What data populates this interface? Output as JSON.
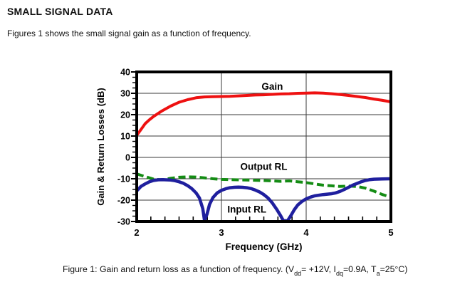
{
  "page": {
    "title": "SMALL SIGNAL DATA",
    "intro": "Figures 1 shows the small signal gain as a function of frequency.",
    "caption": {
      "pre": "Figure 1: Gain and return loss as a function of frequency. (V",
      "sub1": "dd",
      "seg2": "= +12V, I",
      "sub2": "dq",
      "seg3": "=0.9A, T",
      "sub3": "a",
      "seg4": "=25°C)"
    }
  },
  "chart_data": {
    "type": "line",
    "title": "",
    "xlabel": "Frequency (GHz)",
    "ylabel": "Gain & Return Losses (dB)",
    "xlim": [
      2,
      5
    ],
    "ylim": [
      -30,
      40
    ],
    "x_major_ticks": [
      "2",
      "3",
      "4",
      "5"
    ],
    "x_major_values": [
      2,
      3,
      4,
      5
    ],
    "y_major_ticks": [
      "40",
      "30",
      "20",
      "10",
      "0",
      "-10",
      "-20",
      "-30"
    ],
    "y_major_values": [
      40,
      30,
      20,
      10,
      0,
      -10,
      -20,
      -30
    ],
    "x_minor_divisions": 6,
    "y_minor_step": 2.5,
    "grid_vertical_at": [
      3,
      4
    ],
    "grid_horizontal_at": [
      30,
      20,
      10,
      0,
      -10,
      -20
    ],
    "grid_color": "#3a3a3a",
    "border_color": "#000000",
    "legend_position": "inline-labels",
    "series": [
      {
        "name": "Gain",
        "color": "#ee1111",
        "style": "solid",
        "width": 4,
        "points": [
          [
            2.0,
            10.3
          ],
          [
            2.05,
            13
          ],
          [
            2.1,
            15.8
          ],
          [
            2.15,
            17.6
          ],
          [
            2.2,
            19.2
          ],
          [
            2.3,
            21.8
          ],
          [
            2.4,
            24
          ],
          [
            2.5,
            25.8
          ],
          [
            2.6,
            27
          ],
          [
            2.7,
            27.9
          ],
          [
            2.8,
            28.3
          ],
          [
            2.9,
            28.4
          ],
          [
            3.0,
            28.5
          ],
          [
            3.1,
            28.6
          ],
          [
            3.2,
            28.8
          ],
          [
            3.3,
            29.0
          ],
          [
            3.4,
            29.2
          ],
          [
            3.5,
            29.3
          ],
          [
            3.6,
            29.5
          ],
          [
            3.7,
            29.7
          ],
          [
            3.8,
            29.8
          ],
          [
            3.9,
            30.0
          ],
          [
            4.0,
            30.1
          ],
          [
            4.1,
            30.2
          ],
          [
            4.2,
            30.1
          ],
          [
            4.3,
            29.8
          ],
          [
            4.4,
            29.4
          ],
          [
            4.5,
            29.0
          ],
          [
            4.6,
            28.5
          ],
          [
            4.7,
            28.0
          ],
          [
            4.8,
            27.3
          ],
          [
            4.9,
            26.7
          ],
          [
            5.0,
            26.0
          ]
        ]
      },
      {
        "name": "Output RL",
        "color": "#148c14",
        "style": "dashed",
        "width": 4,
        "points": [
          [
            2.0,
            -7.7
          ],
          [
            2.1,
            -9.0
          ],
          [
            2.2,
            -10.2
          ],
          [
            2.3,
            -10.5
          ],
          [
            2.4,
            -9.8
          ],
          [
            2.5,
            -9.3
          ],
          [
            2.6,
            -9.1
          ],
          [
            2.7,
            -9.2
          ],
          [
            2.8,
            -9.6
          ],
          [
            2.9,
            -10.0
          ],
          [
            3.0,
            -10.3
          ],
          [
            3.2,
            -10.5
          ],
          [
            3.4,
            -10.7
          ],
          [
            3.6,
            -11.0
          ],
          [
            3.7,
            -11.2
          ],
          [
            3.8,
            -11.0
          ],
          [
            3.9,
            -11.4
          ],
          [
            4.0,
            -11.8
          ],
          [
            4.1,
            -12.4
          ],
          [
            4.2,
            -13.0
          ],
          [
            4.3,
            -13.3
          ],
          [
            4.4,
            -13.6
          ],
          [
            4.5,
            -13.4
          ],
          [
            4.6,
            -13.6
          ],
          [
            4.7,
            -14.4
          ],
          [
            4.8,
            -15.8
          ],
          [
            4.9,
            -17.4
          ],
          [
            4.95,
            -18.0
          ]
        ]
      },
      {
        "name": "Input RL",
        "color": "#1f1f9e",
        "style": "solid",
        "width": 4.5,
        "points": [
          [
            2.0,
            -15.7
          ],
          [
            2.05,
            -13.6
          ],
          [
            2.1,
            -12.4
          ],
          [
            2.15,
            -11.4
          ],
          [
            2.2,
            -10.8
          ],
          [
            2.25,
            -10.5
          ],
          [
            2.3,
            -10.4
          ],
          [
            2.4,
            -10.6
          ],
          [
            2.45,
            -10.9
          ],
          [
            2.5,
            -11.4
          ],
          [
            2.55,
            -12.1
          ],
          [
            2.6,
            -13.2
          ],
          [
            2.65,
            -14.6
          ],
          [
            2.7,
            -16.6
          ],
          [
            2.74,
            -19.0
          ],
          [
            2.78,
            -24.0
          ],
          [
            2.8,
            -29.5
          ],
          [
            2.83,
            -26.5
          ],
          [
            2.86,
            -22.0
          ],
          [
            2.9,
            -18.8
          ],
          [
            2.95,
            -16.6
          ],
          [
            3.0,
            -15.4
          ],
          [
            3.05,
            -14.7
          ],
          [
            3.1,
            -14.2
          ],
          [
            3.15,
            -14.0
          ],
          [
            3.2,
            -13.9
          ],
          [
            3.25,
            -14.0
          ],
          [
            3.3,
            -14.2
          ],
          [
            3.35,
            -14.6
          ],
          [
            3.4,
            -15.3
          ],
          [
            3.45,
            -16.2
          ],
          [
            3.5,
            -17.4
          ],
          [
            3.55,
            -19.0
          ],
          [
            3.6,
            -21.3
          ],
          [
            3.65,
            -24.2
          ],
          [
            3.7,
            -27.4
          ],
          [
            3.73,
            -29.6
          ],
          [
            3.78,
            -29.7
          ],
          [
            3.82,
            -27.2
          ],
          [
            3.86,
            -24.5
          ],
          [
            3.9,
            -22.3
          ],
          [
            3.95,
            -20.6
          ],
          [
            4.0,
            -19.4
          ],
          [
            4.05,
            -18.6
          ],
          [
            4.1,
            -18.0
          ],
          [
            4.2,
            -17.4
          ],
          [
            4.3,
            -17.0
          ],
          [
            4.35,
            -16.6
          ],
          [
            4.4,
            -15.9
          ],
          [
            4.45,
            -15.0
          ],
          [
            4.5,
            -14.0
          ],
          [
            4.55,
            -13.0
          ],
          [
            4.6,
            -12.2
          ],
          [
            4.65,
            -11.4
          ],
          [
            4.7,
            -10.8
          ],
          [
            4.75,
            -10.4
          ],
          [
            4.8,
            -10.2
          ],
          [
            4.9,
            -10.1
          ],
          [
            5.0,
            -10.0
          ]
        ]
      }
    ],
    "annotations": [
      {
        "text": "Gain",
        "x": 3.6,
        "y": 33.3
      },
      {
        "text": "Output RL",
        "x": 3.5,
        "y": -4.2
      },
      {
        "text": "Input RL",
        "x": 3.3,
        "y": -24.2
      }
    ]
  }
}
